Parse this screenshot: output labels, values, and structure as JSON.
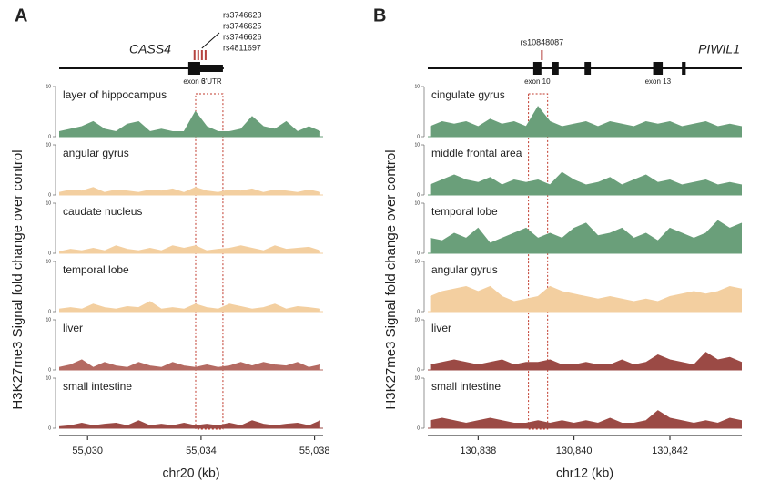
{
  "chart_data": [
    {
      "type": "area",
      "panel": "A",
      "ylabel": "H3K27me3 Signal fold change over control",
      "xlabel": "chr20 (kb)",
      "xlim": [
        55029,
        55038.3
      ],
      "xticks": [
        {
          "value": 55030,
          "label": "55,030"
        },
        {
          "value": 55034,
          "label": "55,034"
        },
        {
          "value": 55038,
          "label": "55,038"
        }
      ],
      "ylim": [
        0,
        10
      ],
      "yticks": [
        0,
        10
      ],
      "highlight_x": [
        55033.81,
        55034.77
      ],
      "gene": {
        "name": "CASS4",
        "span": [
          55029,
          55034.8
        ],
        "exons": [
          {
            "x": [
              55033.55,
              55033.97
            ],
            "label": "exon 6"
          },
          {
            "x": [
              55033.97,
              55034.77
            ],
            "label": "3'UTR"
          }
        ],
        "snps": [
          {
            "name": "rs3746623",
            "x": 55033.77
          },
          {
            "name": "rs3746625",
            "x": 55033.9
          },
          {
            "name": "rs3746626",
            "x": 55034.03
          },
          {
            "name": "rs4811697",
            "x": 55034.16
          }
        ]
      },
      "x": [
        55029.0,
        55029.4,
        55029.8,
        55030.2,
        55030.6,
        55031.0,
        55031.4,
        55031.8,
        55032.2,
        55032.6,
        55033.0,
        55033.4,
        55033.8,
        55034.2,
        55034.6,
        55035.0,
        55035.4,
        55035.8,
        55036.2,
        55036.6,
        55037.0,
        55037.4,
        55037.8,
        55038.2
      ],
      "series": [
        {
          "name": "layer of hippocampus",
          "color": "#6a9f7a",
          "values": [
            1,
            1.5,
            2,
            3,
            1.5,
            1,
            2.5,
            3,
            1,
            1.5,
            1,
            1,
            5,
            2,
            1,
            1,
            1.5,
            4,
            2,
            1.5,
            3,
            1,
            2,
            1
          ]
        },
        {
          "name": "angular gyrus",
          "color": "#f3cfa0",
          "values": [
            0.5,
            1,
            0.8,
            1.5,
            0.5,
            1,
            0.8,
            0.5,
            1,
            0.8,
            1.2,
            0.5,
            1.5,
            0.8,
            0.5,
            1,
            0.8,
            1.2,
            0.5,
            1,
            0.8,
            0.5,
            1,
            0.5
          ]
        },
        {
          "name": "caudate nucleus",
          "color": "#f3cfa0",
          "values": [
            0.3,
            0.8,
            0.5,
            1,
            0.5,
            1.5,
            0.8,
            0.5,
            1,
            0.5,
            1.5,
            1,
            1.5,
            0.5,
            0.8,
            1,
            1.5,
            1,
            0.5,
            1.5,
            0.8,
            1,
            1.2,
            0.5
          ]
        },
        {
          "name": "temporal lobe",
          "color": "#f3cfa0",
          "values": [
            0.5,
            0.8,
            0.5,
            1.5,
            0.8,
            0.5,
            1,
            0.8,
            2,
            0.5,
            0.8,
            0.5,
            1.5,
            0.8,
            0.5,
            1.5,
            1,
            0.5,
            0.8,
            1.5,
            0.5,
            1,
            0.8,
            0.5
          ]
        },
        {
          "name": "liver",
          "color": "#b46a62",
          "values": [
            0.5,
            1,
            2,
            0.5,
            1.5,
            0.8,
            0.5,
            1.5,
            0.8,
            0.5,
            1.5,
            0.8,
            0.5,
            1,
            0.5,
            0.8,
            1.5,
            0.8,
            1.5,
            1,
            0.8,
            1.5,
            0.5,
            1
          ]
        },
        {
          "name": "small intestine",
          "color": "#9b4a45",
          "values": [
            0.3,
            0.5,
            1,
            0.5,
            0.8,
            1,
            0.5,
            1.5,
            0.5,
            0.8,
            0.5,
            1,
            0.5,
            0.8,
            0.5,
            1,
            0.5,
            1.5,
            0.8,
            0.5,
            0.8,
            1,
            0.5,
            1.5
          ]
        }
      ]
    },
    {
      "type": "area",
      "panel": "B",
      "ylabel": "H3K27me3 Signal fold change over control",
      "xlabel": "chr12 (kb)",
      "xlim": [
        130836.95,
        130843.5
      ],
      "xticks": [
        {
          "value": 130838,
          "label": "130,838"
        },
        {
          "value": 130840,
          "label": "130,840"
        },
        {
          "value": 130842,
          "label": "130,842"
        }
      ],
      "ylim": [
        0,
        10
      ],
      "yticks": [
        0,
        10
      ],
      "highlight_x": [
        130839.05,
        130839.45
      ],
      "gene": {
        "name": "PIWIL1",
        "span": [
          130836.95,
          130843.5
        ],
        "exons": [
          {
            "x": [
              130839.15,
              130839.32
            ],
            "label": "exon 10"
          },
          {
            "x": [
              130839.55,
              130839.68
            ]
          },
          {
            "x": [
              130840.22,
              130840.35
            ]
          },
          {
            "x": [
              130841.65,
              130841.85
            ],
            "label": "exon 13"
          },
          {
            "x": [
              130842.25,
              130842.33
            ]
          }
        ],
        "snps": [
          {
            "name": "rs10848087",
            "x": 130839.33
          }
        ]
      },
      "x": [
        130837.0,
        130837.25,
        130837.5,
        130837.75,
        130838.0,
        130838.25,
        130838.5,
        130838.75,
        130839.0,
        130839.25,
        130839.5,
        130839.75,
        130840.0,
        130840.25,
        130840.5,
        130840.75,
        130841.0,
        130841.25,
        130841.5,
        130841.75,
        130842.0,
        130842.25,
        130842.5,
        130842.75,
        130843.0,
        130843.25,
        130843.5
      ],
      "series": [
        {
          "name": "cingulate gyrus",
          "color": "#6a9f7a",
          "values": [
            2,
            3,
            2.5,
            3,
            2,
            3.5,
            2.5,
            3,
            2,
            6,
            3,
            2,
            2.5,
            3,
            2,
            3,
            2.5,
            2,
            3,
            2.5,
            3,
            2,
            2.5,
            3,
            2,
            2.5,
            2
          ]
        },
        {
          "name": "middle frontal area",
          "color": "#6a9f7a",
          "values": [
            2,
            3,
            4,
            3,
            2.5,
            3.5,
            2,
            3,
            2.5,
            3,
            2,
            4.5,
            3,
            2,
            2.5,
            3.5,
            2,
            3,
            4,
            2.5,
            3,
            2,
            2.5,
            3,
            2,
            2.5,
            2
          ]
        },
        {
          "name": "temporal lobe",
          "color": "#6a9f7a",
          "values": [
            3,
            2.5,
            4,
            3,
            5,
            2,
            3,
            4,
            5,
            3,
            4,
            3,
            5,
            6,
            3.5,
            4,
            5,
            3,
            4,
            2.5,
            5,
            4,
            3,
            4,
            6.5,
            5,
            6
          ]
        },
        {
          "name": "angular gyrus",
          "color": "#f3cfa0",
          "values": [
            3,
            4,
            4.5,
            5,
            4,
            5,
            3,
            2,
            2.5,
            3,
            5,
            4,
            3.5,
            3,
            2.5,
            3,
            2.5,
            2,
            2.5,
            2,
            3,
            3.5,
            4,
            3.5,
            4,
            5,
            4.5
          ]
        },
        {
          "name": "liver",
          "color": "#9b4a45",
          "values": [
            1,
            1.5,
            2,
            1.5,
            1,
            1.5,
            2,
            1,
            1.5,
            1.5,
            2,
            1,
            1,
            1.5,
            1,
            1,
            2,
            1,
            1.5,
            3,
            2,
            1.5,
            1,
            3.5,
            2,
            2.5,
            1.5
          ]
        },
        {
          "name": "small intestine",
          "color": "#9b4a45",
          "values": [
            1.5,
            2,
            1.5,
            1,
            1.5,
            2,
            1.5,
            1,
            1,
            1.5,
            1,
            1.5,
            1,
            1.5,
            1,
            2,
            1,
            1,
            1.5,
            3.5,
            2,
            1.5,
            1,
            1.5,
            1,
            2,
            1.5
          ]
        }
      ]
    }
  ]
}
